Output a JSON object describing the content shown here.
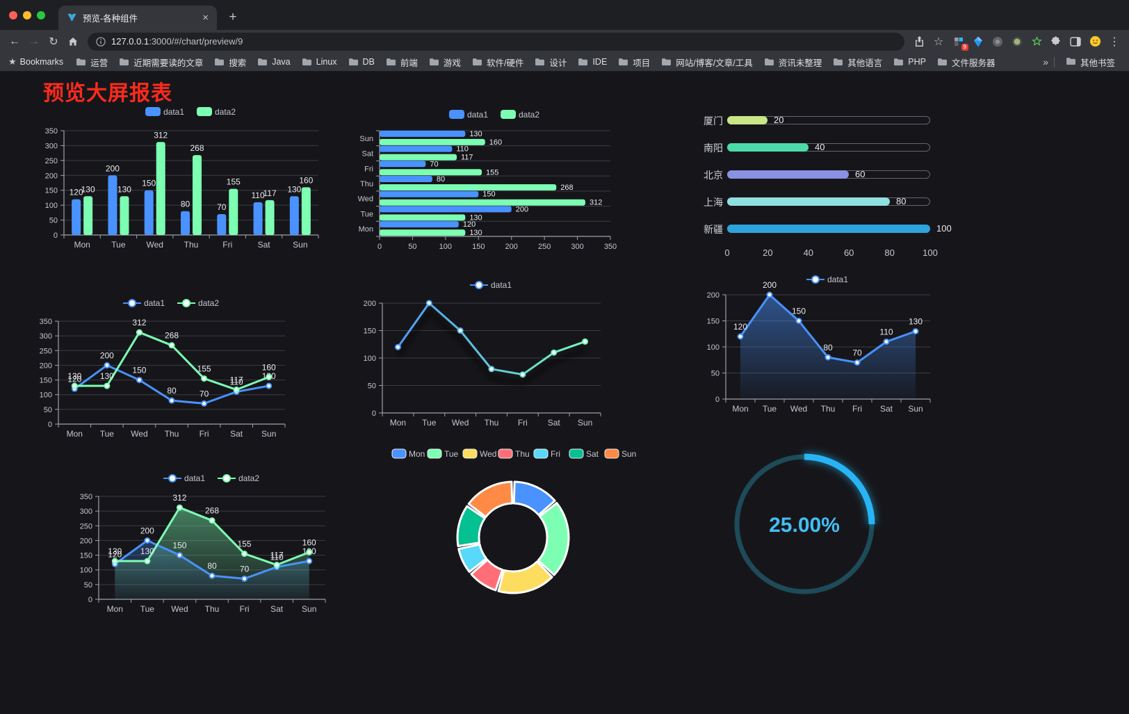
{
  "browser": {
    "tab_title": "预览-各种组件",
    "new_tab_symbol": "+",
    "close_tab_symbol": "×",
    "url_host": "127.0.0.1",
    "url_rest": ":3000/#/chart/preview/9",
    "bookmarks_label": "Bookmarks",
    "bookmarks": [
      "运营",
      "近期需要读的文章",
      "搜索",
      "Java",
      "Linux",
      "DB",
      "前端",
      "游戏",
      "软件/硬件",
      "设计",
      "IDE",
      "项目",
      "网站/博客/文章/工具",
      "资讯未整理",
      "其他语言",
      "PHP",
      "文件服务器"
    ],
    "bookmarks_overflow_symbol": "»",
    "other_bookmarks_label": "其他书签",
    "extension_badge": "9",
    "menu_symbol": "⋮"
  },
  "page": {
    "title": "预览大屏报表",
    "title_color": "#fb2b1c"
  },
  "chart_data": [
    {
      "id": "bar-vertical",
      "type": "bar",
      "categories": [
        "Mon",
        "Tue",
        "Wed",
        "Thu",
        "Fri",
        "Sat",
        "Sun"
      ],
      "series": [
        {
          "name": "data1",
          "color": "#4992ff",
          "values": [
            120,
            200,
            150,
            80,
            70,
            110,
            130
          ]
        },
        {
          "name": "data2",
          "color": "#7cffb2",
          "values": [
            130,
            130,
            312,
            268,
            155,
            117,
            160
          ]
        }
      ],
      "ylim": [
        0,
        350
      ],
      "ystep": 50,
      "legend_position": "top",
      "grid": true
    },
    {
      "id": "bar-horizontal",
      "type": "barh",
      "categories": [
        "Mon",
        "Tue",
        "Wed",
        "Thu",
        "Fri",
        "Sat",
        "Sun"
      ],
      "series": [
        {
          "name": "data1",
          "color": "#4992ff",
          "values": [
            120,
            200,
            150,
            80,
            70,
            110,
            130
          ]
        },
        {
          "name": "data2",
          "color": "#7cffb2",
          "values": [
            130,
            130,
            312,
            268,
            155,
            117,
            160
          ]
        }
      ],
      "xlim": [
        0,
        350
      ],
      "xstep": 50,
      "legend_position": "top"
    },
    {
      "id": "city-progress",
      "type": "progress",
      "max": 100,
      "ticks": [
        0,
        20,
        40,
        60,
        80,
        100
      ],
      "items": [
        {
          "label": "厦门",
          "value": 20,
          "color": "#c9e687"
        },
        {
          "label": "南阳",
          "value": 40,
          "color": "#4cdba8"
        },
        {
          "label": "北京",
          "value": 60,
          "color": "#8a90e2"
        },
        {
          "label": "上海",
          "value": 80,
          "color": "#8fdfe0"
        },
        {
          "label": "新疆",
          "value": 100,
          "color": "#2fa3dc"
        }
      ]
    },
    {
      "id": "line-two",
      "type": "line",
      "categories": [
        "Mon",
        "Tue",
        "Wed",
        "Thu",
        "Fri",
        "Sat",
        "Sun"
      ],
      "series": [
        {
          "name": "data1",
          "color": "#4992ff",
          "values": [
            120,
            200,
            150,
            80,
            70,
            110,
            130
          ]
        },
        {
          "name": "data2",
          "color": "#7cffb2",
          "values": [
            130,
            130,
            312,
            268,
            155,
            117,
            160
          ]
        }
      ],
      "ylim": [
        0,
        350
      ],
      "ystep": 50,
      "labels": true
    },
    {
      "id": "line-gradient",
      "type": "line",
      "categories": [
        "Mon",
        "Tue",
        "Wed",
        "Thu",
        "Fri",
        "Sat",
        "Sun"
      ],
      "series": [
        {
          "name": "data1",
          "color": "#4992ff",
          "color2": "#7cffb2",
          "values": [
            120,
            200,
            150,
            80,
            70,
            110,
            130
          ]
        }
      ],
      "ylim": [
        0,
        200
      ],
      "ystep": 50,
      "labels": false,
      "gradient": true,
      "shadow": true
    },
    {
      "id": "area-single",
      "type": "line",
      "categories": [
        "Mon",
        "Tue",
        "Wed",
        "Thu",
        "Fri",
        "Sat",
        "Sun"
      ],
      "series": [
        {
          "name": "data1",
          "color": "#4992ff",
          "values": [
            120,
            200,
            150,
            80,
            70,
            110,
            130
          ]
        }
      ],
      "ylim": [
        0,
        200
      ],
      "ystep": 50,
      "labels": true,
      "area": true
    },
    {
      "id": "line-area-two",
      "type": "line",
      "categories": [
        "Mon",
        "Tue",
        "Wed",
        "Thu",
        "Fri",
        "Sat",
        "Sun"
      ],
      "series": [
        {
          "name": "data1",
          "color": "#4992ff",
          "values": [
            120,
            200,
            150,
            80,
            70,
            110,
            130
          ]
        },
        {
          "name": "data2",
          "color": "#7cffb2",
          "values": [
            130,
            130,
            312,
            268,
            155,
            117,
            160
          ]
        }
      ],
      "ylim": [
        0,
        350
      ],
      "ystep": 50,
      "labels": true,
      "area": true
    },
    {
      "id": "week-donut",
      "type": "pie",
      "items": [
        {
          "name": "Mon",
          "value": 120,
          "color": "#4992ff"
        },
        {
          "name": "Tue",
          "value": 200,
          "color": "#7cffb2"
        },
        {
          "name": "Wed",
          "value": 150,
          "color": "#fddd60"
        },
        {
          "name": "Thu",
          "value": 80,
          "color": "#ff6e76"
        },
        {
          "name": "Fri",
          "value": 70,
          "color": "#58d9f9"
        },
        {
          "name": "Sat",
          "value": 110,
          "color": "#05c091"
        },
        {
          "name": "Sun",
          "value": 130,
          "color": "#ff8a45"
        }
      ]
    },
    {
      "id": "ring-progress",
      "type": "ring",
      "value": 25,
      "label": "25.00%",
      "color": "#28b4f4",
      "track_color": "#1d4b59",
      "label_color": "#45bdf5"
    }
  ]
}
